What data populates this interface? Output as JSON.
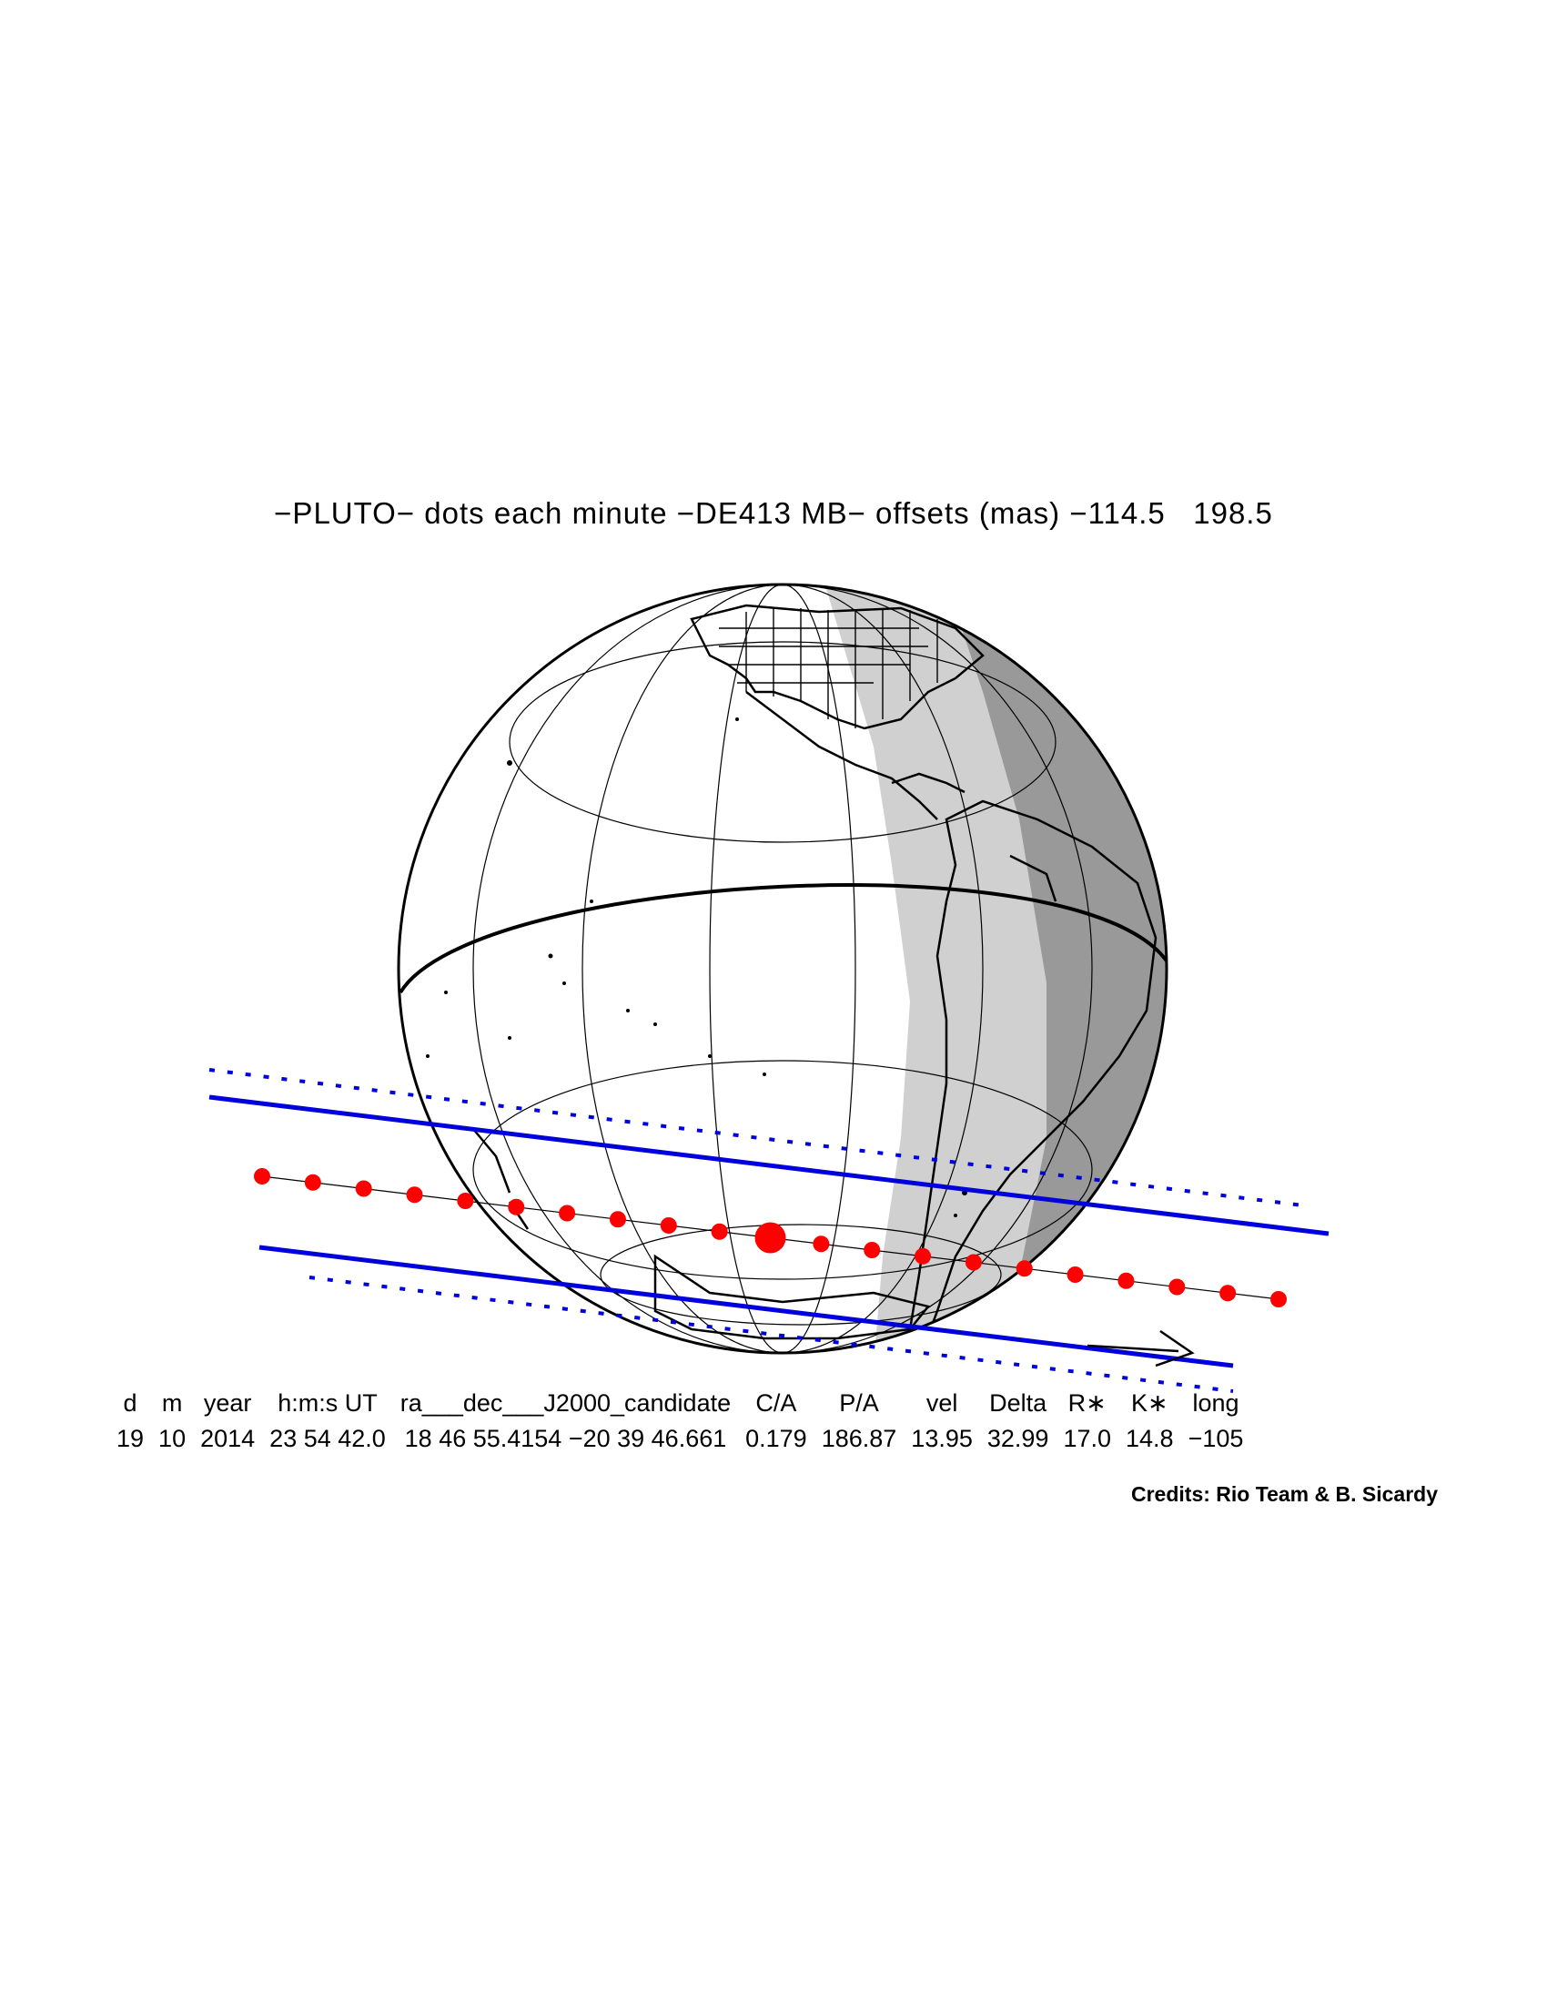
{
  "title": "−PLUTO− dots each minute −DE413 MB− offsets (mas) −114.5   198.5",
  "colors": {
    "path": "#0000dd",
    "dots": "#ff0000",
    "night": "#999999",
    "twilight": "#d0d0d0",
    "land": "#ffffff",
    "coast": "#000000"
  },
  "map": {
    "type": "orthographic-globe",
    "features": [
      "coastlines",
      "us-state-borders",
      "graticule",
      "equator",
      "day-night-terminator",
      "twilight-band"
    ],
    "shadow_path": {
      "lines": [
        "north-limit-dotted",
        "north-limit",
        "south-limit",
        "south-limit-dotted"
      ]
    },
    "dots": {
      "count": 21,
      "interval": "minute",
      "closest_approach_index": 10
    },
    "arrow": "motion-direction"
  },
  "table": {
    "headers": [
      "d",
      "m",
      "year",
      "h:m:s UT",
      "ra___dec___J2000_candidate",
      "C/A",
      "P/A",
      "vel",
      "Delta",
      "R∗",
      "K∗",
      "long"
    ],
    "values": [
      "19",
      "10",
      "2014",
      "23 54 42.0",
      "18 46 55.4154 −20 39 46.661",
      "0.179",
      "186.87",
      "13.95",
      "32.99",
      "17.0",
      "14.8",
      "−105"
    ]
  },
  "credits": "Credits: Rio Team & B. Sicardy"
}
